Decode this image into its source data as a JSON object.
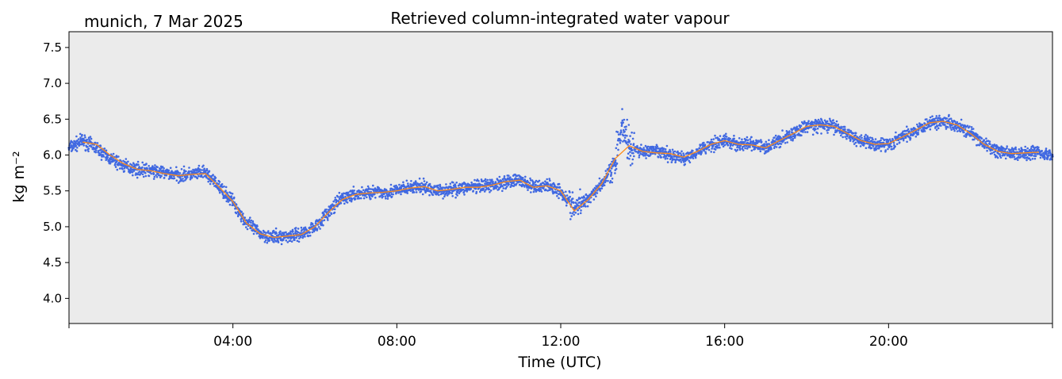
{
  "header": {
    "location_date": "munich, 7 Mar 2025"
  },
  "chart_data": {
    "type": "scatter",
    "title": "Retrieved column-integrated water vapour",
    "xlabel": "Time (UTC)",
    "ylabel": "kg m⁻²",
    "xlim_hours": [
      0,
      24
    ],
    "ylim": [
      3.65,
      7.72
    ],
    "x_ticks": [
      {
        "hour": 4,
        "label": "04:00"
      },
      {
        "hour": 8,
        "label": "08:00"
      },
      {
        "hour": 12,
        "label": "12:00"
      },
      {
        "hour": 16,
        "label": "16:00"
      },
      {
        "hour": 20,
        "label": "20:00"
      }
    ],
    "y_ticks": [
      {
        "value": 4.0,
        "label": "4.0"
      },
      {
        "value": 4.5,
        "label": "4.5"
      },
      {
        "value": 5.0,
        "label": "5.0"
      },
      {
        "value": 5.5,
        "label": "5.5"
      },
      {
        "value": 6.0,
        "label": "6.0"
      },
      {
        "value": 6.5,
        "label": "6.5"
      },
      {
        "value": 7.0,
        "label": "7.0"
      },
      {
        "value": 7.5,
        "label": "7.5"
      }
    ],
    "grid": false,
    "colors": {
      "background": "#ebebeb",
      "scatter": "#4169e1",
      "line": "#ff8c1a"
    },
    "series": [
      {
        "kind": "scatter",
        "x_hours": [
          0.0,
          0.33,
          0.67,
          1.0,
          1.33,
          1.67,
          2.0,
          2.33,
          2.67,
          3.0,
          3.33,
          3.67,
          4.0,
          4.33,
          4.67,
          5.0,
          5.33,
          5.67,
          6.0,
          6.33,
          6.67,
          7.0,
          7.33,
          7.67,
          8.0,
          8.33,
          8.67,
          9.0,
          9.33,
          9.67,
          10.0,
          10.33,
          10.67,
          11.0,
          11.33,
          11.67,
          12.0,
          12.33,
          12.67,
          13.0,
          13.33,
          13.5,
          13.67,
          14.0,
          14.33,
          14.67,
          15.0,
          15.33,
          15.67,
          16.0,
          16.33,
          16.67,
          17.0,
          17.33,
          17.67,
          18.0,
          18.33,
          18.67,
          19.0,
          19.33,
          19.67,
          20.0,
          20.33,
          20.67,
          21.0,
          21.33,
          21.67,
          22.0,
          22.33,
          22.67,
          23.0,
          23.33,
          23.67,
          24.0
        ],
        "values": [
          6.1,
          6.2,
          6.1,
          5.95,
          5.85,
          5.8,
          5.78,
          5.75,
          5.72,
          5.73,
          5.75,
          5.55,
          5.35,
          5.05,
          4.9,
          4.85,
          4.87,
          4.9,
          5.0,
          5.2,
          5.4,
          5.45,
          5.48,
          5.48,
          5.5,
          5.55,
          5.55,
          5.5,
          5.52,
          5.55,
          5.55,
          5.58,
          5.63,
          5.65,
          5.55,
          5.58,
          5.5,
          5.25,
          5.4,
          5.6,
          5.9,
          6.45,
          6.1,
          6.05,
          6.05,
          6.0,
          5.95,
          6.05,
          6.15,
          6.2,
          6.15,
          6.15,
          6.1,
          6.2,
          6.3,
          6.4,
          6.42,
          6.4,
          6.3,
          6.2,
          6.15,
          6.15,
          6.25,
          6.35,
          6.45,
          6.48,
          6.42,
          6.3,
          6.15,
          6.05,
          6.02,
          6.03,
          6.05,
          5.98
        ]
      },
      {
        "kind": "line",
        "x_hours": [
          0.33,
          0.67,
          1.0,
          1.33,
          1.67,
          2.0,
          2.33,
          2.67,
          3.0,
          3.33,
          3.67,
          4.0,
          4.33,
          4.67,
          5.0,
          5.33,
          5.67,
          6.0,
          6.33,
          6.67,
          7.0,
          7.33,
          7.67,
          8.0,
          8.33,
          8.67,
          9.0,
          9.33,
          9.67,
          10.0,
          10.33,
          10.67,
          11.0,
          11.33,
          11.67,
          12.0,
          12.33,
          12.67,
          13.0,
          13.33,
          13.67,
          14.0,
          14.33,
          14.67,
          15.0,
          15.33,
          15.67,
          16.0,
          16.33,
          16.67,
          17.0,
          17.33,
          17.67,
          18.0,
          18.33,
          18.67,
          19.0,
          19.33,
          19.67,
          20.0,
          20.33,
          20.67,
          21.0,
          21.33,
          21.67,
          22.0,
          22.33,
          22.67,
          23.0,
          23.33,
          23.67
        ],
        "values": [
          6.18,
          6.15,
          6.0,
          5.88,
          5.8,
          5.78,
          5.74,
          5.71,
          5.73,
          5.74,
          5.55,
          5.35,
          5.05,
          4.9,
          4.85,
          4.87,
          4.89,
          5.0,
          5.2,
          5.38,
          5.45,
          5.47,
          5.48,
          5.5,
          5.54,
          5.56,
          5.5,
          5.52,
          5.55,
          5.55,
          5.58,
          5.63,
          5.65,
          5.55,
          5.57,
          5.5,
          5.22,
          5.38,
          5.6,
          5.95,
          6.13,
          6.05,
          6.03,
          6.02,
          5.97,
          6.05,
          6.15,
          6.2,
          6.15,
          6.14,
          6.1,
          6.2,
          6.3,
          6.4,
          6.42,
          6.4,
          6.3,
          6.2,
          6.15,
          6.16,
          6.25,
          6.35,
          6.45,
          6.47,
          6.42,
          6.3,
          6.15,
          6.05,
          6.02,
          6.03,
          6.04
        ]
      }
    ]
  }
}
